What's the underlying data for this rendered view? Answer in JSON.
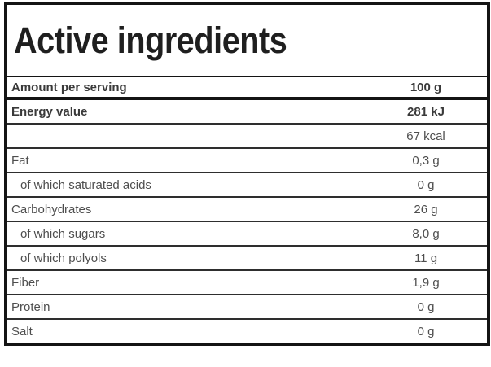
{
  "title": "Active ingredients",
  "table": {
    "header": {
      "label": "Amount per serving",
      "value": "100 g"
    },
    "rows": [
      {
        "label": "Energy value",
        "value": "281 kJ",
        "bold": true,
        "indent": false
      },
      {
        "label": "",
        "value": "67 kcal",
        "bold": false,
        "indent": false
      },
      {
        "label": "Fat",
        "value": "0,3 g",
        "bold": false,
        "indent": false
      },
      {
        "label": "of which saturated acids",
        "value": "0 g",
        "bold": false,
        "indent": true
      },
      {
        "label": "Carbohydrates",
        "value": "26 g",
        "bold": false,
        "indent": false
      },
      {
        "label": "of which sugars",
        "value": "8,0 g",
        "bold": false,
        "indent": true
      },
      {
        "label": "of which polyols",
        "value": "11 g",
        "bold": false,
        "indent": true
      },
      {
        "label": "Fiber",
        "value": "1,9 g",
        "bold": false,
        "indent": false
      },
      {
        "label": "Protein",
        "value": "0 g",
        "bold": false,
        "indent": false
      },
      {
        "label": "Salt",
        "value": "0 g",
        "bold": false,
        "indent": false
      }
    ]
  },
  "colors": {
    "outer_border": "#141414",
    "row_separator": "#2e2e2e",
    "text_regular": "#4e4e4e",
    "text_bold": "#3a3a3a",
    "title_text": "#1f1f1f",
    "background": "#ffffff"
  }
}
